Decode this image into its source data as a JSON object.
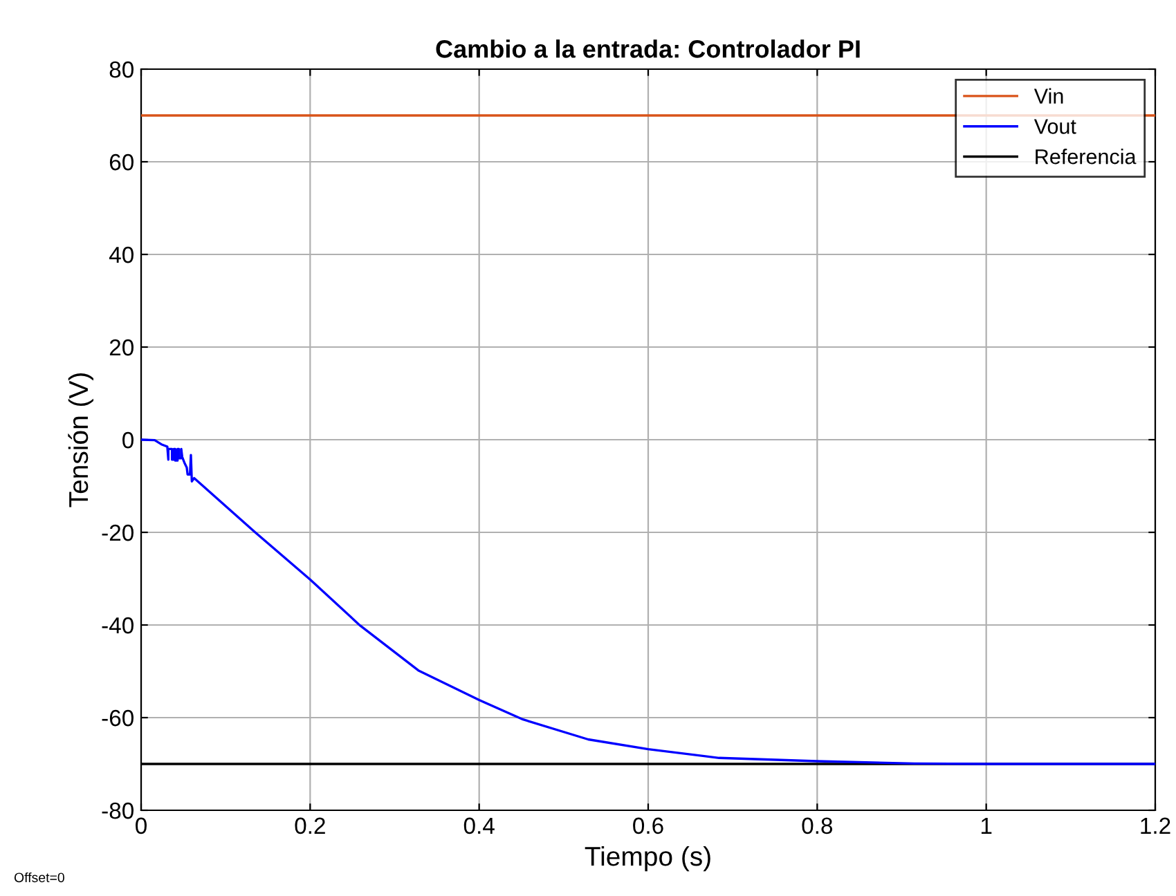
{
  "chart_data": {
    "type": "line",
    "title": "Cambio a la entrada: Controlador PI",
    "xlabel": "Tiempo (s)",
    "ylabel": "Tensión (V)",
    "xlim": [
      0,
      1.2
    ],
    "ylim": [
      -80,
      80
    ],
    "xticks": [
      0,
      0.2,
      0.4,
      0.6,
      0.8,
      1,
      1.2
    ],
    "yticks": [
      -80,
      -60,
      -40,
      -20,
      0,
      20,
      40,
      60,
      80
    ],
    "grid": true,
    "legend": "top right",
    "annotations": [
      "Offset=0"
    ],
    "series": [
      {
        "name": "Vin",
        "color": "#d95319",
        "x": [
          0,
          1.2
        ],
        "values": [
          70,
          70
        ]
      },
      {
        "name": "Vout",
        "color": "#0000ff",
        "x": [
          0,
          0.016,
          0.024,
          0.031,
          0.0322,
          0.0322,
          0.0365,
          0.0365,
          0.0387,
          0.0387,
          0.0404,
          0.0404,
          0.0431,
          0.0431,
          0.0447,
          0.0447,
          0.0475,
          0.0475,
          0.0486,
          0.0513,
          0.054,
          0.055,
          0.0578,
          0.0578,
          0.0589,
          0.0589,
          0.06,
          0.0627,
          0.135,
          0.2,
          0.259,
          0.328,
          0.4,
          0.452,
          0.529,
          0.6,
          0.684,
          0.8,
          0.915,
          1.0,
          1.2
        ],
        "values": [
          0,
          -0.1,
          -1,
          -1.5,
          -4.3,
          -2,
          -2,
          -4.3,
          -4.3,
          -2,
          -2,
          -4.5,
          -4.5,
          -2,
          -2,
          -4,
          -4,
          -2,
          -3.7,
          -5,
          -6,
          -7.5,
          -7.5,
          -7.5,
          -3.3,
          -3.3,
          -9,
          -8.3,
          -20,
          -30.2,
          -40.1,
          -49.8,
          -56.2,
          -60.4,
          -64.7,
          -66.8,
          -68.7,
          -69.4,
          -69.9,
          -70,
          -70
        ]
      },
      {
        "name": "Referencia",
        "color": "#000000",
        "x": [
          0,
          1.2
        ],
        "values": [
          -70,
          -70
        ]
      }
    ]
  }
}
